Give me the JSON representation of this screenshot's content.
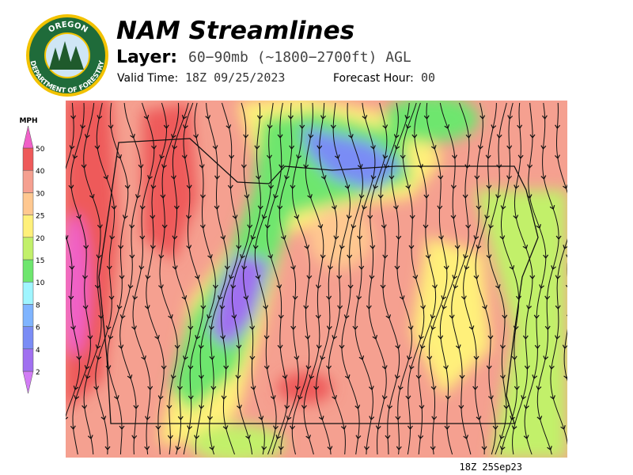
{
  "header": {
    "title": "NAM Streamlines",
    "layer_label": "Layer:",
    "layer_value": "60−90mb (~1800−2700ft) AGL",
    "valid_time_label": "Valid Time:",
    "valid_time": "18Z 09/25/2023",
    "forecast_hour_label": "Forecast Hour:",
    "forecast_hour": "00"
  },
  "logo": {
    "top_text": "OREGON",
    "bottom_text": "DEPARTMENT OF FORESTRY"
  },
  "legend": {
    "unit": "MPH",
    "ticks": [
      2,
      4,
      6,
      8,
      10,
      15,
      20,
      25,
      30,
      40,
      50
    ],
    "colors": [
      "#d27cf5",
      "#a070f0",
      "#7a8cf5",
      "#7fb4ff",
      "#9ff5ff",
      "#6ee66e",
      "#c2f06a",
      "#fff07a",
      "#ffc890",
      "#f5a090",
      "#ee5a5a",
      "#f060c8"
    ]
  },
  "footer": {
    "timestamp": "18Z 25Sep23"
  }
}
